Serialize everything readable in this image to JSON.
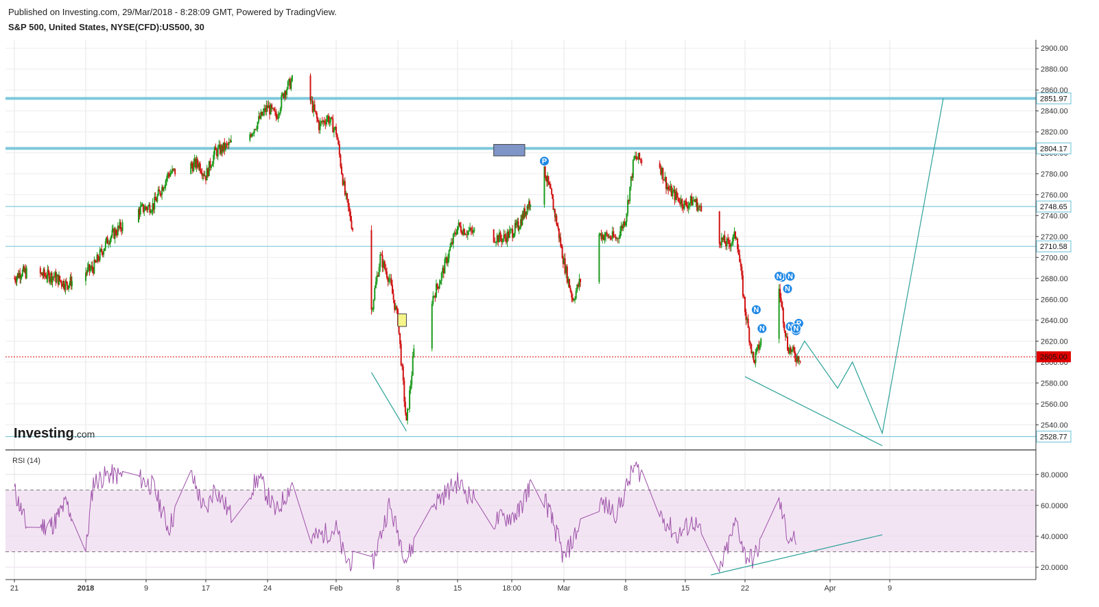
{
  "header": {
    "published": "Published on Investing.com, 29/Mar/2018 - 8:28:09 GMT, Powered by TradingView.",
    "symbol": "S&P 500, United States, NYSE(CFD):US500, 30"
  },
  "logo": {
    "text": "Investing",
    "suffix": ".com"
  },
  "rsi_label": "RSI (14)",
  "colors": {
    "level_line": "#7ec8dc",
    "current_price": "#e00000",
    "trend_line": "#2aa198",
    "rsi_line": "#9c4fa8",
    "rsi_band": "#f3e4f3",
    "candle_up": "#1a9a1a",
    "candle_down": "#d01010",
    "marker": "#1e88e5",
    "blue_box": "#7f95c8",
    "yellow_box": "#f5f58a"
  },
  "chart_data": [
    {
      "type": "candlestick",
      "title": "S&P 500, United States, NYSE(CFD):US500, 30",
      "x_tick_labels": [
        "21",
        "2018",
        "9",
        "17",
        "24",
        "Feb",
        "8",
        "15",
        "18:00",
        "Mar",
        "8",
        "15",
        "22",
        "Apr",
        "9"
      ],
      "y_tick_labels": [
        "2900.00",
        "2880.00",
        "2860.00",
        "2840.00",
        "2820.00",
        "2800.00",
        "2780.00",
        "2760.00",
        "2740.00",
        "2720.00",
        "2700.00",
        "2680.00",
        "2660.00",
        "2640.00",
        "2620.00",
        "2600.00",
        "2580.00",
        "2560.00",
        "2540.00"
      ],
      "ylim": [
        2516,
        2908
      ],
      "horizontal_levels": [
        {
          "label": "2851.97",
          "value": 2851.97,
          "style": "thick"
        },
        {
          "label": "2804.17",
          "value": 2804.17,
          "style": "thick"
        },
        {
          "label": "2748.65",
          "value": 2748.65,
          "style": "thin"
        },
        {
          "label": "2710.58",
          "value": 2710.58,
          "style": "thin"
        },
        {
          "label": "2528.77",
          "value": 2528.77,
          "style": "thin"
        }
      ],
      "current_price": {
        "label": "2605.00",
        "value": 2605.0
      },
      "price_path": [
        {
          "date": "2017-12-21",
          "price": 2680
        },
        {
          "date": "2017-12-22",
          "price": 2686
        },
        {
          "date": "2017-12-27",
          "price": 2682
        },
        {
          "date": "2017-12-29",
          "price": 2674
        },
        {
          "date": "2018-01-02",
          "price": 2690
        },
        {
          "date": "2018-01-04",
          "price": 2718
        },
        {
          "date": "2018-01-08",
          "price": 2745
        },
        {
          "date": "2018-01-10",
          "price": 2750
        },
        {
          "date": "2018-01-12",
          "price": 2780
        },
        {
          "date": "2018-01-16",
          "price": 2790
        },
        {
          "date": "2018-01-17",
          "price": 2778
        },
        {
          "date": "2018-01-18",
          "price": 2800
        },
        {
          "date": "2018-01-22",
          "price": 2818
        },
        {
          "date": "2018-01-24",
          "price": 2844
        },
        {
          "date": "2018-01-25",
          "price": 2834
        },
        {
          "date": "2018-01-26",
          "price": 2860
        },
        {
          "date": "2018-01-27",
          "price": 2870
        },
        {
          "date": "2018-01-29",
          "price": 2850
        },
        {
          "date": "2018-01-30",
          "price": 2826
        },
        {
          "date": "2018-01-31",
          "price": 2834
        },
        {
          "date": "2018-02-01",
          "price": 2820
        },
        {
          "date": "2018-02-02",
          "price": 2760
        },
        {
          "date": "2018-02-05",
          "price": 2650
        },
        {
          "date": "2018-02-06",
          "price": 2700
        },
        {
          "date": "2018-02-07",
          "price": 2680
        },
        {
          "date": "2018-02-08",
          "price": 2640
        },
        {
          "date": "2018-02-09",
          "price": 2540
        },
        {
          "date": "2018-02-10",
          "price": 2620
        },
        {
          "date": "2018-02-13",
          "price": 2680
        },
        {
          "date": "2018-02-15",
          "price": 2730
        },
        {
          "date": "2018-02-16",
          "price": 2725
        },
        {
          "date": "2018-02-20",
          "price": 2718
        },
        {
          "date": "2018-02-22",
          "price": 2730
        },
        {
          "date": "2018-02-26",
          "price": 2784
        },
        {
          "date": "2018-02-27",
          "price": 2760
        },
        {
          "date": "2018-02-28",
          "price": 2730
        },
        {
          "date": "2018-03-02",
          "price": 2660
        },
        {
          "date": "2018-03-05",
          "price": 2722
        },
        {
          "date": "2018-03-07",
          "price": 2718
        },
        {
          "date": "2018-03-08",
          "price": 2738
        },
        {
          "date": "2018-03-09",
          "price": 2795
        },
        {
          "date": "2018-03-12",
          "price": 2788
        },
        {
          "date": "2018-03-13",
          "price": 2765
        },
        {
          "date": "2018-03-15",
          "price": 2750
        },
        {
          "date": "2018-03-16",
          "price": 2755
        },
        {
          "date": "2018-03-19",
          "price": 2718
        },
        {
          "date": "2018-03-20",
          "price": 2712
        },
        {
          "date": "2018-03-21",
          "price": 2722
        },
        {
          "date": "2018-03-22",
          "price": 2650
        },
        {
          "date": "2018-03-23",
          "price": 2600
        },
        {
          "date": "2018-03-26",
          "price": 2670
        },
        {
          "date": "2018-03-27",
          "price": 2615
        },
        {
          "date": "2018-03-28",
          "price": 2605
        }
      ],
      "projection_path": [
        {
          "date": "2018-03-29",
          "price": 2620
        },
        {
          "date": "2018-04-02",
          "price": 2575
        },
        {
          "date": "2018-04-04",
          "price": 2600
        },
        {
          "date": "2018-04-08",
          "price": 2532
        },
        {
          "date": "2018-04-15",
          "price": 2852
        }
      ],
      "trendlines": [
        {
          "from": {
            "date": "2018-02-05",
            "price": 2590
          },
          "to": {
            "date": "2018-02-09",
            "price": 2534
          }
        },
        {
          "from": {
            "date": "2018-03-22",
            "price": 2586
          },
          "to": {
            "date": "2018-04-08",
            "price": 2520
          }
        }
      ],
      "boxes": [
        {
          "color": "blue",
          "from": {
            "date": "2018-02-19",
            "price": 2808
          },
          "to": {
            "date": "2018-02-23",
            "price": 2797
          }
        },
        {
          "color": "yellow",
          "from": {
            "date": "2018-02-08",
            "price": 2646
          },
          "to": {
            "date": "2018-02-09",
            "price": 2634
          }
        }
      ],
      "markers": [
        {
          "label": "P",
          "date": "2018-02-26",
          "price": 2792
        },
        {
          "label": "N",
          "date": "2018-03-23",
          "price": 2650
        },
        {
          "label": "N",
          "date": "2018-03-24",
          "price": 2632
        },
        {
          "label": "N",
          "date": "2018-03-26",
          "price": 2681
        },
        {
          "label": "N",
          "date": "2018-03-26",
          "price": 2682
        },
        {
          "label": "N",
          "date": "2018-03-27",
          "price": 2682
        },
        {
          "label": "N",
          "date": "2018-03-27",
          "price": 2670
        },
        {
          "label": "N",
          "date": "2018-03-27",
          "price": 2634
        },
        {
          "label": "N",
          "date": "2018-03-28",
          "price": 2630
        },
        {
          "label": "P",
          "date": "2018-03-28",
          "price": 2637
        },
        {
          "label": "N",
          "date": "2018-03-28",
          "price": 2632
        }
      ]
    },
    {
      "type": "line",
      "title": "RSI (14)",
      "y_tick_labels": [
        "80.0000",
        "60.0000",
        "40.0000",
        "20.0000"
      ],
      "ylim": [
        12,
        95
      ],
      "bands": {
        "upper": 70,
        "lower": 30
      },
      "rsi_path": [
        {
          "date": "2017-12-21",
          "value": 70
        },
        {
          "date": "2017-12-23",
          "value": 45
        },
        {
          "date": "2017-12-27",
          "value": 48
        },
        {
          "date": "2017-12-29",
          "value": 62
        },
        {
          "date": "2018-01-01",
          "value": 30
        },
        {
          "date": "2018-01-02",
          "value": 75
        },
        {
          "date": "2018-01-04",
          "value": 80
        },
        {
          "date": "2018-01-08",
          "value": 78
        },
        {
          "date": "2018-01-10",
          "value": 72
        },
        {
          "date": "2018-01-12",
          "value": 45
        },
        {
          "date": "2018-01-15",
          "value": 80
        },
        {
          "date": "2018-01-17",
          "value": 55
        },
        {
          "date": "2018-01-18",
          "value": 72
        },
        {
          "date": "2018-01-20",
          "value": 52
        },
        {
          "date": "2018-01-23",
          "value": 78
        },
        {
          "date": "2018-01-25",
          "value": 55
        },
        {
          "date": "2018-01-27",
          "value": 76
        },
        {
          "date": "2018-01-29",
          "value": 38
        },
        {
          "date": "2018-02-01",
          "value": 45
        },
        {
          "date": "2018-02-02",
          "value": 25
        },
        {
          "date": "2018-02-05",
          "value": 20
        },
        {
          "date": "2018-02-07",
          "value": 60
        },
        {
          "date": "2018-02-09",
          "value": 25
        },
        {
          "date": "2018-02-12",
          "value": 60
        },
        {
          "date": "2018-02-15",
          "value": 75
        },
        {
          "date": "2018-02-19",
          "value": 50
        },
        {
          "date": "2018-02-22",
          "value": 55
        },
        {
          "date": "2018-02-24",
          "value": 75
        },
        {
          "date": "2018-02-26",
          "value": 65
        },
        {
          "date": "2018-02-28",
          "value": 40
        },
        {
          "date": "2018-03-01",
          "value": 25
        },
        {
          "date": "2018-03-03",
          "value": 50
        },
        {
          "date": "2018-03-05",
          "value": 62
        },
        {
          "date": "2018-03-07",
          "value": 55
        },
        {
          "date": "2018-03-09",
          "value": 85
        },
        {
          "date": "2018-03-10",
          "value": 80
        },
        {
          "date": "2018-03-12",
          "value": 55
        },
        {
          "date": "2018-03-14",
          "value": 40
        },
        {
          "date": "2018-03-16",
          "value": 50
        },
        {
          "date": "2018-03-19",
          "value": 17
        },
        {
          "date": "2018-03-21",
          "value": 50
        },
        {
          "date": "2018-03-22",
          "value": 28
        },
        {
          "date": "2018-03-23",
          "value": 25
        },
        {
          "date": "2018-03-26",
          "value": 63
        },
        {
          "date": "2018-03-27",
          "value": 40
        },
        {
          "date": "2018-03-28",
          "value": 38
        }
      ],
      "trendline": {
        "from": {
          "date": "2018-03-18",
          "value": 15
        },
        "to": {
          "date": "2018-04-08",
          "value": 41
        }
      }
    }
  ]
}
